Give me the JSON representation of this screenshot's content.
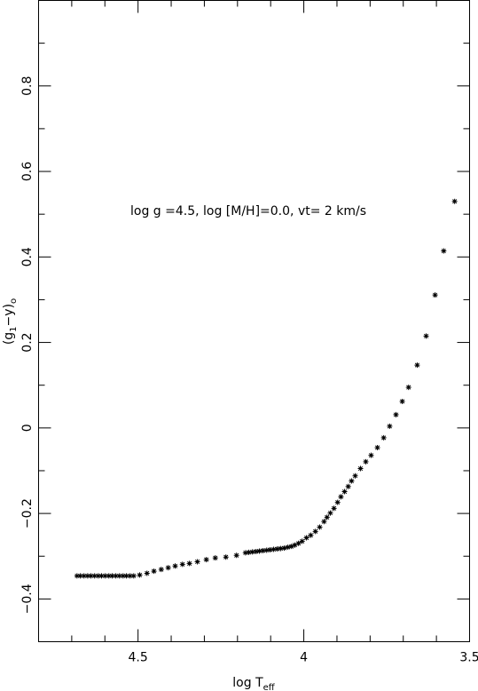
{
  "chart_data": {
    "type": "scatter",
    "annotation": "log g =4.5, log [M/H]=0.0, vt= 2 km/s",
    "xlabel": {
      "main": "log T",
      "sub": "eff"
    },
    "ylabel": {
      "open": "(g",
      "sub1": "1",
      "mid": "−y)",
      "sub2": "o"
    },
    "xlim": [
      4.8,
      3.5
    ],
    "ylim": [
      -0.5,
      1.0
    ],
    "xticks": [
      4.5,
      4,
      3.5
    ],
    "yticks": [
      {
        "value": -0.4,
        "label": "−0.4"
      },
      {
        "value": -0.2,
        "label": "−0.2"
      },
      0,
      0.2,
      0.4,
      0.6,
      0.8
    ],
    "xminor_ticks": [
      4.8,
      4.7,
      4.6,
      4.4,
      4.3,
      4.2,
      4.1,
      3.9,
      3.8,
      3.7,
      3.6
    ],
    "yminor_ticks": [
      -0.5,
      -0.3,
      -0.1,
      0.1,
      0.3,
      0.5,
      0.7,
      0.9
    ],
    "color": "#000000",
    "x": [
      4.684,
      4.674,
      4.663,
      4.652,
      4.642,
      4.631,
      4.62,
      4.61,
      4.599,
      4.588,
      4.578,
      4.567,
      4.556,
      4.545,
      4.535,
      4.524,
      4.513,
      4.495,
      4.473,
      4.452,
      4.43,
      4.409,
      4.388,
      4.366,
      4.345,
      4.321,
      4.294,
      4.267,
      4.235,
      4.203,
      4.176,
      4.166,
      4.155,
      4.144,
      4.134,
      4.123,
      4.112,
      4.102,
      4.091,
      4.08,
      4.07,
      4.059,
      4.048,
      4.037,
      4.027,
      4.016,
      4.005,
      3.992,
      3.979,
      3.965,
      3.952,
      3.939,
      3.93,
      3.92,
      3.909,
      3.898,
      3.888,
      3.877,
      3.866,
      3.856,
      3.845,
      3.829,
      3.813,
      3.797,
      3.778,
      3.759,
      3.741,
      3.722,
      3.703,
      3.684,
      3.658,
      3.631,
      3.604,
      3.578,
      3.545
    ],
    "y": [
      -0.346,
      -0.346,
      -0.346,
      -0.346,
      -0.346,
      -0.346,
      -0.346,
      -0.346,
      -0.346,
      -0.346,
      -0.346,
      -0.346,
      -0.346,
      -0.346,
      -0.346,
      -0.346,
      -0.346,
      -0.344,
      -0.34,
      -0.335,
      -0.331,
      -0.327,
      -0.323,
      -0.319,
      -0.317,
      -0.313,
      -0.308,
      -0.304,
      -0.302,
      -0.298,
      -0.292,
      -0.291,
      -0.29,
      -0.289,
      -0.288,
      -0.287,
      -0.286,
      -0.285,
      -0.284,
      -0.283,
      -0.282,
      -0.281,
      -0.279,
      -0.277,
      -0.274,
      -0.27,
      -0.265,
      -0.257,
      -0.251,
      -0.242,
      -0.232,
      -0.219,
      -0.209,
      -0.199,
      -0.188,
      -0.174,
      -0.161,
      -0.149,
      -0.137,
      -0.124,
      -0.112,
      -0.095,
      -0.079,
      -0.064,
      -0.046,
      -0.023,
      0.004,
      0.031,
      0.062,
      0.095,
      0.147,
      0.215,
      0.311,
      0.414,
      0.53
    ]
  }
}
